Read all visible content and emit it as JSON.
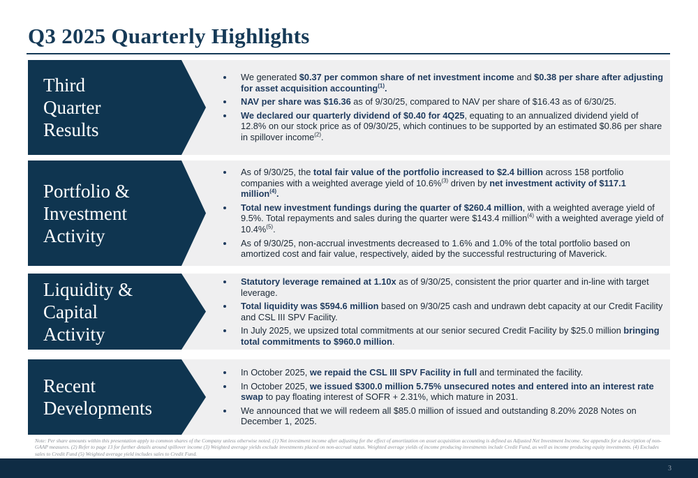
{
  "header": {
    "title": "Q3 2025 Quarterly Highlights"
  },
  "sections": [
    {
      "heading": [
        "Third",
        "Quarter",
        "Results"
      ],
      "bullets": [
        [
          {
            "text": "We generated ",
            "style": "plain"
          },
          {
            "text": "$0.37 per common share of net investment income",
            "style": "bold"
          },
          {
            "text": " and ",
            "style": "plain"
          },
          {
            "text": "$0.38 per share after adjusting for asset acquisition accounting",
            "style": "bold"
          },
          {
            "text": "(1)",
            "style": "bold-sup"
          },
          {
            "text": ".",
            "style": "bold"
          }
        ],
        [
          {
            "text": "NAV per share was $16.36",
            "style": "bold"
          },
          {
            "text": " as of 9/30/25, compared to NAV per share of $16.43 as of 6/30/25.",
            "style": "plain"
          }
        ],
        [
          {
            "text": "We declared our quarterly dividend of $0.40 for 4Q25",
            "style": "bold"
          },
          {
            "text": ", equating to an annualized dividend yield of 12.8% on our stock price as of 09/30/25, which continues to be supported by an estimated $0.86 per share in spillover income",
            "style": "plain"
          },
          {
            "text": "(2)",
            "style": "sup"
          },
          {
            "text": ".",
            "style": "plain"
          }
        ]
      ]
    },
    {
      "heading": [
        "Portfolio &",
        "Investment",
        "Activity"
      ],
      "bullets": [
        [
          {
            "text": "As of 9/30/25, the ",
            "style": "plain"
          },
          {
            "text": "total fair value of the portfolio increased to $2.4 billion",
            "style": "bold"
          },
          {
            "text": " across 158 portfolio companies with a weighted average yield of 10.6%",
            "style": "plain"
          },
          {
            "text": "(3)",
            "style": "sup"
          },
          {
            "text": " driven by ",
            "style": "plain"
          },
          {
            "text": "net investment activity of $117.1 million",
            "style": "bold"
          },
          {
            "text": "(4)",
            "style": "bold-sup"
          },
          {
            "text": ".",
            "style": "bold"
          }
        ],
        [
          {
            "text": "Total new investment fundings during the quarter of $260.4 million",
            "style": "bold"
          },
          {
            "text": ", with a weighted average yield of 9.5%. Total repayments and sales during the quarter were $143.4 million",
            "style": "plain"
          },
          {
            "text": "(4)",
            "style": "sup"
          },
          {
            "text": " with a weighted average yield of 10.4%",
            "style": "plain"
          },
          {
            "text": "(5)",
            "style": "sup"
          },
          {
            "text": ".",
            "style": "plain"
          }
        ],
        [
          {
            "text": "As of 9/30/25, non-accrual investments decreased to 1.6% and 1.0% of the total portfolio based on amortized cost and fair value, respectively, aided by the successful restructuring of Maverick.",
            "style": "plain"
          }
        ]
      ]
    },
    {
      "heading": [
        "Liquidity &",
        "Capital",
        "Activity"
      ],
      "bullets": [
        [
          {
            "text": "Statutory leverage remained at 1.10x",
            "style": "bold"
          },
          {
            "text": " as of 9/30/25, consistent the prior quarter and in-line with target leverage.",
            "style": "plain"
          }
        ],
        [
          {
            "text": "Total liquidity was $594.6 million",
            "style": "bold"
          },
          {
            "text": " based on 9/30/25 cash and undrawn debt capacity at our Credit Facility and CSL III SPV Facility.",
            "style": "plain"
          }
        ],
        [
          {
            "text": "In July 2025, we upsized total commitments at our senior secured Credit Facility by $25.0 million ",
            "style": "plain"
          },
          {
            "text": "bringing total commitments to $960.0 million",
            "style": "bold"
          },
          {
            "text": ".",
            "style": "plain"
          }
        ]
      ]
    },
    {
      "heading": [
        "Recent",
        "Developments"
      ],
      "bullets": [
        [
          {
            "text": "In October 2025, ",
            "style": "plain"
          },
          {
            "text": "we repaid the CSL III SPV Facility in full",
            "style": "bold"
          },
          {
            "text": " and terminated the facility.",
            "style": "plain"
          }
        ],
        [
          {
            "text": "In October 2025, ",
            "style": "plain"
          },
          {
            "text": "we issued $300.0 million 5.75% unsecured notes and entered into an interest rate swap",
            "style": "bold"
          },
          {
            "text": " to pay floating interest of SOFR + 2.31%, which mature in 2031.",
            "style": "plain"
          }
        ],
        [
          {
            "text": "We announced that we will redeem all $85.0 million of issued and outstanding 8.20% 2028 Notes on December 1, 2025.",
            "style": "plain"
          }
        ]
      ]
    }
  ],
  "footnote": "Note: Per share amounts within this presentation apply to common shares of the Company unless otherwise noted. (1) Net investment income after adjusting for the effect of amortization on asset acquisition accounting is defined as Adjusted Net Investment Income. See appendix for a description of non-GAAP measures. (2) Refer to page 13 for further details around spillover income (3) Weighted average yields exclude investments placed on non-accrual status. Weighted average yields of income producing investments include Credit Fund, as well as income producing equity investments. (4) Excludes sales to Credit Fund (5) Weighted average yield includes sales to Credit Fund.",
  "footer": {
    "page_number": "3"
  }
}
